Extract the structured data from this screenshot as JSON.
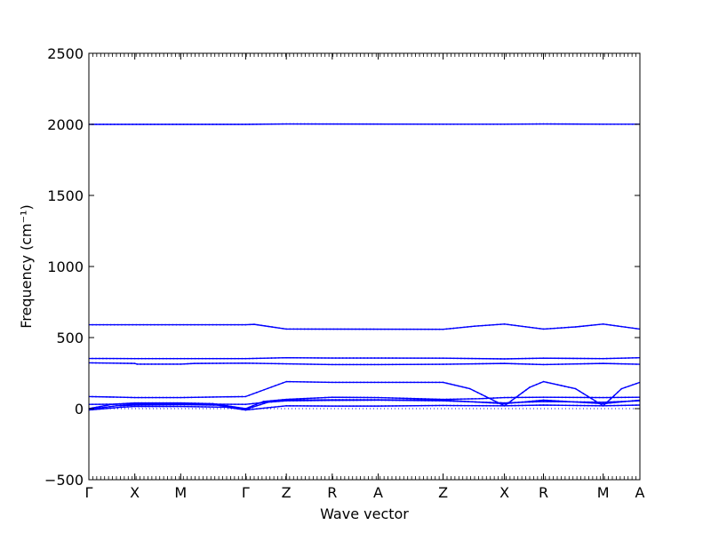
{
  "chart_data": {
    "type": "line",
    "title": "",
    "xlabel": "Wave vector",
    "ylabel": "Frequency (cm⁻¹)",
    "ylim": [
      -500,
      2500
    ],
    "yticks": [
      -500,
      0,
      500,
      1000,
      1500,
      2000,
      2500
    ],
    "ytick_labels": [
      "−500",
      "0",
      "500",
      "1000",
      "1500",
      "2000",
      "2500"
    ],
    "grid": false,
    "legend": "none",
    "line_color": "#0000ff",
    "path_distance": 12.0,
    "kpoints": [
      {
        "label": "Γ",
        "x": 0.0
      },
      {
        "label": "X",
        "x": 1.0
      },
      {
        "label": "M",
        "x": 2.0
      },
      {
        "label": "Γ",
        "x": 3.414
      },
      {
        "label": "Z",
        "x": 4.3
      },
      {
        "label": "R",
        "x": 5.3
      },
      {
        "label": "A",
        "x": 6.3
      },
      {
        "label": "Z",
        "x": 7.714
      },
      {
        "label": "X",
        "x": 9.05
      },
      {
        "label": "R",
        "x": 9.9
      },
      {
        "label": "M",
        "x": 11.2
      },
      {
        "label": "A",
        "x": 12.0
      }
    ],
    "series": [
      {
        "points": [
          [
            0,
            2000
          ],
          [
            3.414,
            2000
          ],
          [
            4.3,
            2003
          ],
          [
            7.714,
            2001
          ],
          [
            9.05,
            2001
          ],
          [
            9.9,
            2003
          ],
          [
            11.2,
            2001
          ],
          [
            12,
            2001
          ]
        ]
      },
      {
        "points": [
          [
            0,
            590
          ],
          [
            3.414,
            590
          ],
          [
            3.6,
            593
          ],
          [
            4.3,
            560
          ],
          [
            7.714,
            558
          ],
          [
            8.4,
            580
          ],
          [
            9.05,
            595
          ],
          [
            9.9,
            560
          ],
          [
            10.6,
            575
          ],
          [
            11.2,
            595
          ],
          [
            12,
            560
          ]
        ]
      },
      {
        "points": [
          [
            0,
            353
          ],
          [
            1,
            352
          ],
          [
            2,
            352
          ],
          [
            3.414,
            352
          ],
          [
            4.3,
            358
          ],
          [
            5.3,
            356
          ],
          [
            6.3,
            356
          ],
          [
            7.714,
            355
          ],
          [
            9.05,
            350
          ],
          [
            9.9,
            355
          ],
          [
            11.2,
            352
          ],
          [
            12,
            358
          ]
        ]
      },
      {
        "points": [
          [
            0,
            322
          ],
          [
            1,
            318
          ],
          [
            1.05,
            313
          ],
          [
            2,
            313
          ],
          [
            2.3,
            318
          ],
          [
            3.414,
            320
          ],
          [
            4.3,
            315
          ],
          [
            5.3,
            310
          ],
          [
            6.3,
            310
          ],
          [
            7.714,
            312
          ],
          [
            9.05,
            318
          ],
          [
            9.9,
            310
          ],
          [
            11.2,
            318
          ],
          [
            12,
            312
          ]
        ]
      },
      {
        "points": [
          [
            0,
            85
          ],
          [
            1,
            78
          ],
          [
            2,
            78
          ],
          [
            3.414,
            85
          ],
          [
            4.3,
            190
          ],
          [
            5.3,
            185
          ],
          [
            6.3,
            185
          ],
          [
            7.714,
            185
          ],
          [
            8.3,
            140
          ],
          [
            9.05,
            20
          ],
          [
            9.6,
            150
          ],
          [
            9.9,
            190
          ],
          [
            10.6,
            140
          ],
          [
            11.2,
            20
          ],
          [
            11.6,
            140
          ],
          [
            12,
            185
          ]
        ]
      },
      {
        "points": [
          [
            0,
            0
          ],
          [
            0.5,
            30
          ],
          [
            1,
            40
          ],
          [
            2,
            40
          ],
          [
            2.7,
            35
          ],
          [
            3.414,
            0
          ],
          [
            3.8,
            50
          ],
          [
            4.3,
            65
          ],
          [
            5.3,
            80
          ],
          [
            6.3,
            78
          ],
          [
            7.714,
            65
          ],
          [
            8.5,
            70
          ],
          [
            9.05,
            78
          ],
          [
            9.9,
            80
          ],
          [
            11.2,
            78
          ],
          [
            12,
            80
          ]
        ]
      },
      {
        "points": [
          [
            0,
            -5
          ],
          [
            0.6,
            20
          ],
          [
            1,
            25
          ],
          [
            2,
            28
          ],
          [
            2.8,
            25
          ],
          [
            3.414,
            -5
          ],
          [
            3.9,
            45
          ],
          [
            4.3,
            55
          ],
          [
            5.3,
            58
          ],
          [
            6.3,
            60
          ],
          [
            7.714,
            55
          ],
          [
            9.05,
            40
          ],
          [
            9.9,
            50
          ],
          [
            11.2,
            45
          ],
          [
            12,
            55
          ]
        ]
      },
      {
        "points": [
          [
            0,
            -10
          ],
          [
            0.7,
            10
          ],
          [
            1,
            15
          ],
          [
            2,
            15
          ],
          [
            3,
            10
          ],
          [
            3.414,
            -10
          ],
          [
            4.3,
            20
          ],
          [
            5.3,
            18
          ],
          [
            6.3,
            18
          ],
          [
            7.714,
            22
          ],
          [
            9.05,
            20
          ],
          [
            9.9,
            25
          ],
          [
            11.2,
            20
          ],
          [
            12,
            25
          ]
        ]
      },
      {
        "points": [
          [
            0,
            30
          ],
          [
            1,
            32
          ],
          [
            2,
            32
          ],
          [
            3.414,
            30
          ],
          [
            4.3,
            60
          ],
          [
            5.3,
            62
          ],
          [
            6.3,
            62
          ],
          [
            7.714,
            60
          ],
          [
            9.05,
            35
          ],
          [
            9.9,
            60
          ],
          [
            11.2,
            35
          ],
          [
            12,
            60
          ]
        ]
      },
      {
        "points": [
          [
            0,
            0
          ],
          [
            3.414,
            0
          ],
          [
            4.3,
            0
          ],
          [
            7.714,
            0
          ],
          [
            9.05,
            0
          ],
          [
            9.9,
            0
          ],
          [
            11.2,
            0
          ],
          [
            12,
            0
          ]
        ],
        "dotted": true
      }
    ]
  }
}
